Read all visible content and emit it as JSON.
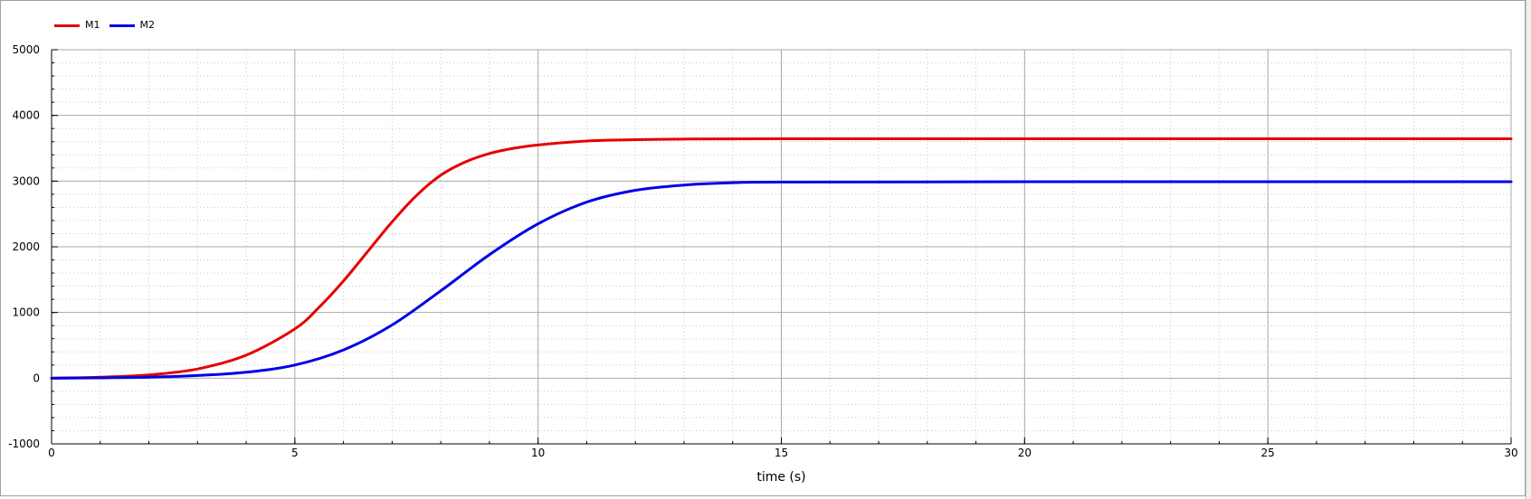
{
  "chart_data": {
    "type": "line",
    "xlabel": "time (s)",
    "ylabel": "",
    "xlim": [
      0,
      30
    ],
    "ylim": [
      -1000,
      5000
    ],
    "x_ticks": [
      0,
      5,
      10,
      15,
      20,
      25,
      30
    ],
    "y_ticks": [
      -1000,
      0,
      1000,
      2000,
      3000,
      4000,
      5000
    ],
    "x_minor_step": 1,
    "y_minor_step": 200,
    "grid": true,
    "legend_position": "top-left",
    "series": [
      {
        "name": "M1",
        "color": "#e60000",
        "x": [
          0,
          1,
          2,
          3,
          4,
          5,
          5.5,
          6,
          6.5,
          7,
          7.5,
          8,
          8.5,
          9,
          9.5,
          10,
          11,
          12,
          13,
          15,
          20,
          30
        ],
        "y": [
          0,
          15,
          50,
          140,
          350,
          750,
          1080,
          1480,
          1930,
          2380,
          2780,
          3090,
          3290,
          3420,
          3500,
          3550,
          3610,
          3630,
          3640,
          3645,
          3645,
          3645
        ]
      },
      {
        "name": "M2",
        "color": "#0000e6",
        "x": [
          0,
          1,
          2,
          3,
          4,
          5,
          6,
          7,
          8,
          9,
          10,
          11,
          12,
          13,
          14,
          15,
          20,
          30
        ],
        "y": [
          0,
          5,
          15,
          40,
          90,
          200,
          430,
          810,
          1330,
          1880,
          2350,
          2680,
          2860,
          2940,
          2975,
          2985,
          2990,
          2990
        ]
      }
    ]
  }
}
